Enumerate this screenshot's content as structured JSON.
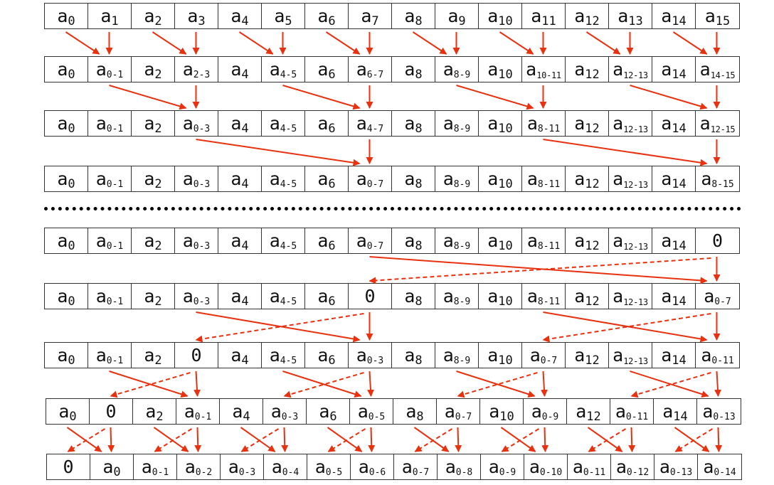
{
  "colors": {
    "arrow": "#e8310f",
    "cell_border": "#333333",
    "divider": "#000000"
  },
  "rows": [
    [
      "a|0",
      "a|1",
      "a|2",
      "a|3",
      "a|4",
      "a|5",
      "a|6",
      "a|7",
      "a|8",
      "a|9",
      "a|10",
      "a|11",
      "a|12",
      "a|13",
      "a|14",
      "a|15"
    ],
    [
      "a|0",
      "a|0-1",
      "a|2",
      "a|2-3",
      "a|4",
      "a|4-5",
      "a|6",
      "a|6-7",
      "a|8",
      "a|8-9",
      "a|10",
      "a|10-11",
      "a|12",
      "a|12-13",
      "a|14",
      "a|14-15"
    ],
    [
      "a|0",
      "a|0-1",
      "a|2",
      "a|0-3",
      "a|4",
      "a|4-5",
      "a|6",
      "a|4-7",
      "a|8",
      "a|8-9",
      "a|10",
      "a|8-11",
      "a|12",
      "a|12-13",
      "a|14",
      "a|12-15"
    ],
    [
      "a|0",
      "a|0-1",
      "a|2",
      "a|0-3",
      "a|4",
      "a|4-5",
      "a|6",
      "a|0-7",
      "a|8",
      "a|8-9",
      "a|10",
      "a|8-11",
      "a|12",
      "a|12-13",
      "a|14",
      "a|8-15"
    ],
    [
      "a|0",
      "a|0-1",
      "a|2",
      "a|0-3",
      "a|4",
      "a|4-5",
      "a|6",
      "a|0-7",
      "a|8",
      "a|8-9",
      "a|10",
      "a|8-11",
      "a|12",
      "a|12-13",
      "a|14",
      "0"
    ],
    [
      "a|0",
      "a|0-1",
      "a|2",
      "a|0-3",
      "a|4",
      "a|4-5",
      "a|6",
      "0",
      "a|8",
      "a|8-9",
      "a|10",
      "a|8-11",
      "a|12",
      "a|12-13",
      "a|14",
      "a|0-7"
    ],
    [
      "a|0",
      "a|0-1",
      "a|2",
      "0",
      "a|4",
      "a|4-5",
      "a|6",
      "a|0-3",
      "a|8",
      "a|8-9",
      "a|10",
      "a|0-7",
      "a|12",
      "a|12-13",
      "a|14",
      "a|0-11"
    ],
    [
      "a|0",
      "0",
      "a|2",
      "a|0-1",
      "a|4",
      "a|0-3",
      "a|6",
      "a|0-5",
      "a|8",
      "a|0-7",
      "a|10",
      "a|0-9",
      "a|12",
      "a|0-11",
      "a|14",
      "a|0-13"
    ],
    [
      "0",
      "a|0",
      "a|0-1",
      "a|0-2",
      "a|0-3",
      "a|0-4",
      "a|0-5",
      "a|0-6",
      "a|0-7",
      "a|0-8",
      "a|0-9",
      "a|0-10",
      "a|0-11",
      "a|0-12",
      "a|0-13",
      "a|0-14"
    ]
  ],
  "edges": [
    {
      "rows": [
        0,
        1
      ],
      "solid": [
        [
          0,
          1
        ],
        [
          2,
          3
        ],
        [
          4,
          5
        ],
        [
          6,
          7
        ],
        [
          8,
          9
        ],
        [
          10,
          11
        ],
        [
          12,
          13
        ],
        [
          14,
          15
        ]
      ],
      "vertical": [
        1,
        3,
        5,
        7,
        9,
        11,
        13,
        15
      ],
      "dashed": []
    },
    {
      "rows": [
        1,
        2
      ],
      "solid": [
        [
          1,
          3
        ],
        [
          5,
          7
        ],
        [
          9,
          11
        ],
        [
          13,
          15
        ]
      ],
      "vertical": [
        3,
        7,
        11,
        15
      ],
      "dashed": []
    },
    {
      "rows": [
        2,
        3
      ],
      "solid": [
        [
          3,
          7
        ],
        [
          11,
          15
        ]
      ],
      "vertical": [
        7,
        15
      ],
      "dashed": []
    },
    {
      "rows": [
        4,
        5
      ],
      "solid": [
        [
          7,
          15
        ]
      ],
      "vertical": [
        15
      ],
      "dashed": [
        [
          15,
          7
        ]
      ]
    },
    {
      "rows": [
        5,
        6
      ],
      "solid": [
        [
          3,
          7
        ],
        [
          11,
          15
        ]
      ],
      "vertical": [
        7,
        15
      ],
      "dashed": [
        [
          7,
          3
        ],
        [
          15,
          11
        ]
      ]
    },
    {
      "rows": [
        6,
        7
      ],
      "solid": [
        [
          1,
          3
        ],
        [
          5,
          7
        ],
        [
          9,
          11
        ],
        [
          13,
          15
        ]
      ],
      "vertical": [
        3,
        7,
        11,
        15
      ],
      "dashed": [
        [
          3,
          1
        ],
        [
          7,
          5
        ],
        [
          11,
          9
        ],
        [
          15,
          13
        ]
      ]
    },
    {
      "rows": [
        7,
        8
      ],
      "solid": [
        [
          0,
          1
        ],
        [
          2,
          3
        ],
        [
          4,
          5
        ],
        [
          6,
          7
        ],
        [
          8,
          9
        ],
        [
          10,
          11
        ],
        [
          12,
          13
        ],
        [
          14,
          15
        ]
      ],
      "vertical": [
        1,
        3,
        5,
        7,
        9,
        11,
        13,
        15
      ],
      "dashed": [
        [
          1,
          0
        ],
        [
          3,
          2
        ],
        [
          5,
          4
        ],
        [
          7,
          6
        ],
        [
          9,
          8
        ],
        [
          11,
          10
        ],
        [
          13,
          12
        ],
        [
          15,
          14
        ]
      ]
    }
  ]
}
